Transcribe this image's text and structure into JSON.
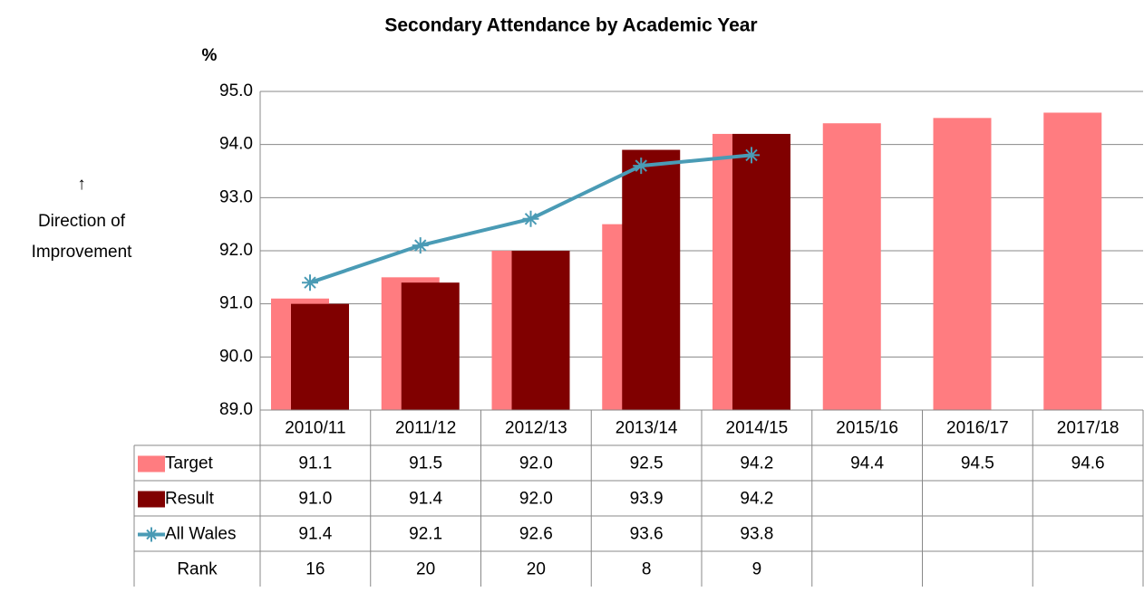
{
  "chart_data": {
    "type": "bar",
    "title": "Secondary Attendance by Academic Year",
    "y_label": "%",
    "annotation": {
      "arrow": "↑",
      "lines": [
        "Direction of",
        "Improvement"
      ]
    },
    "categories": [
      "2010/11",
      "2011/12",
      "2012/13",
      "2013/14",
      "2014/15",
      "2015/16",
      "2016/17",
      "2017/18"
    ],
    "series": [
      {
        "name": "Target",
        "type": "bar",
        "color": "#ff7c80",
        "values": [
          91.1,
          91.5,
          92.0,
          92.5,
          94.2,
          94.4,
          94.5,
          94.6
        ],
        "value_labels": [
          "91.1",
          "91.5",
          "92.0",
          "92.5",
          "94.2",
          "94.4",
          "94.5",
          "94.6"
        ]
      },
      {
        "name": "Result",
        "type": "bar",
        "color": "#800000",
        "values": [
          91.0,
          91.4,
          92.0,
          93.9,
          94.2,
          null,
          null,
          null
        ],
        "value_labels": [
          "91.0",
          "91.4",
          "92.0",
          "93.9",
          "94.2",
          null,
          null,
          null
        ]
      },
      {
        "name": "All Wales",
        "type": "line",
        "color": "#4a9bb5",
        "values": [
          91.4,
          92.1,
          92.6,
          93.6,
          93.8,
          null,
          null,
          null
        ],
        "value_labels": [
          "91.4",
          "92.1",
          "92.6",
          "93.6",
          "93.8",
          null,
          null,
          null
        ]
      }
    ],
    "rank": {
      "name": "Rank",
      "values": [
        16,
        20,
        20,
        8,
        9,
        null,
        null,
        null
      ]
    },
    "ylim": [
      89,
      95
    ],
    "yticks": [
      {
        "value": 89,
        "label": "89.0"
      },
      {
        "value": 90,
        "label": "90.0"
      },
      {
        "value": 91,
        "label": "91.0"
      },
      {
        "value": 92,
        "label": "92.0"
      },
      {
        "value": 93,
        "label": "93.0"
      },
      {
        "value": 94,
        "label": "94.0"
      },
      {
        "value": 95,
        "label": "95.0"
      }
    ],
    "grid": true
  }
}
